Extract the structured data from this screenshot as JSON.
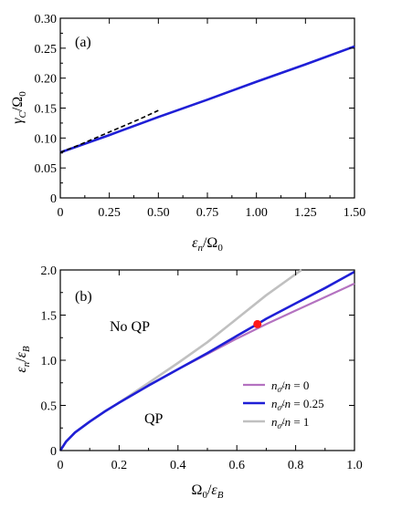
{
  "chart_data": [
    {
      "type": "line",
      "panel_label": "(a)",
      "xlabel": "εn/Ω0",
      "ylabel": "γC/Ω0",
      "xlim": [
        0,
        1.5
      ],
      "ylim": [
        0,
        0.3
      ],
      "xticks": [
        "0",
        "0.25",
        "0.50",
        "0.75",
        "1.00",
        "1.25",
        "1.50"
      ],
      "yticks": [
        "0",
        "0.05",
        "0.10",
        "0.15",
        "0.20",
        "0.25",
        "0.30"
      ],
      "series": [
        {
          "color": "#1f1fd6",
          "style": "solid",
          "x": [
            0,
            0.25,
            0.5,
            0.75,
            1.0,
            1.25,
            1.5
          ],
          "y": [
            0.076,
            0.105,
            0.135,
            0.164,
            0.194,
            0.223,
            0.253
          ]
        },
        {
          "color": "#000000",
          "style": "dashed",
          "x": [
            0,
            0.1,
            0.2,
            0.3,
            0.4,
            0.5
          ],
          "y": [
            0.076,
            0.089,
            0.103,
            0.117,
            0.131,
            0.146
          ]
        }
      ]
    },
    {
      "type": "line",
      "panel_label": "(b)",
      "xlabel": "Ω0/εB",
      "ylabel": "εn/εB",
      "xlim": [
        0,
        1.0
      ],
      "ylim": [
        0,
        2.0
      ],
      "xticks": [
        "0",
        "0.2",
        "0.4",
        "0.6",
        "0.8",
        "1.0"
      ],
      "yticks": [
        "0",
        "0.5",
        "1.0",
        "1.5",
        "2.0"
      ],
      "annotations": [
        "No QP",
        "QP"
      ],
      "legend_position": "bottom-right",
      "series": [
        {
          "name": "nσ̃/n = 0",
          "color": "#b472c0",
          "x": [
            0,
            0.02,
            0.05,
            0.1,
            0.15,
            0.2,
            0.3,
            0.4,
            0.5,
            0.6,
            0.7,
            0.8,
            0.9,
            1.0
          ],
          "y": [
            0,
            0.1,
            0.2,
            0.32,
            0.43,
            0.53,
            0.72,
            0.9,
            1.07,
            1.24,
            1.4,
            1.55,
            1.7,
            1.85
          ]
        },
        {
          "name": "nσ̃/n = 0.25",
          "color": "#1f1fd6",
          "x": [
            0,
            0.02,
            0.05,
            0.1,
            0.15,
            0.2,
            0.3,
            0.4,
            0.5,
            0.6,
            0.67,
            0.7,
            0.8,
            0.9,
            1.0
          ],
          "y": [
            0,
            0.1,
            0.2,
            0.32,
            0.43,
            0.53,
            0.72,
            0.9,
            1.08,
            1.27,
            1.4,
            1.46,
            1.63,
            1.8,
            1.98
          ]
        },
        {
          "name": "nσ̃/n = 1",
          "color": "#c0c0c0",
          "x": [
            0,
            0.02,
            0.05,
            0.1,
            0.15,
            0.2,
            0.3,
            0.4,
            0.5,
            0.6,
            0.7,
            0.82
          ],
          "y": [
            0,
            0.1,
            0.2,
            0.32,
            0.43,
            0.53,
            0.75,
            0.97,
            1.2,
            1.46,
            1.72,
            2.0
          ]
        }
      ],
      "marker": {
        "x": 0.67,
        "y": 1.4,
        "color": "#ff1a1a"
      }
    }
  ]
}
